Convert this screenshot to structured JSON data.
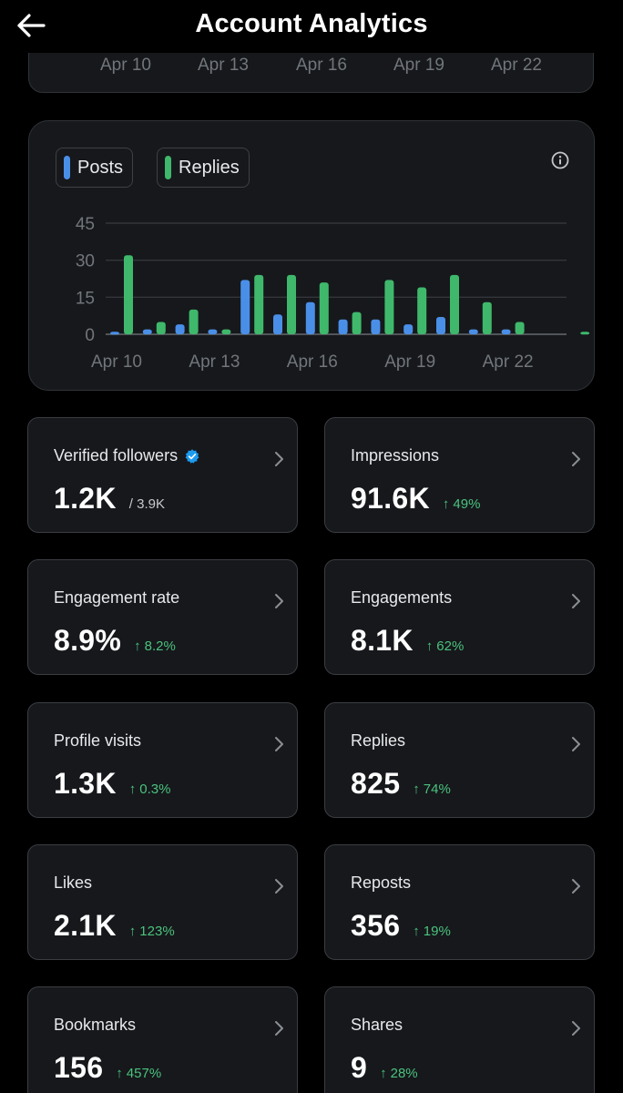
{
  "header": {
    "title": "Account Analytics"
  },
  "previous_chart": {
    "x_labels": [
      "Apr 10",
      "Apr 13",
      "Apr 16",
      "Apr 19",
      "Apr 22"
    ]
  },
  "chart_legend": {
    "posts_label": "Posts",
    "replies_label": "Replies"
  },
  "colors": {
    "posts": "#4a8fe7",
    "replies": "#3fb86b",
    "change_positive": "#4bc27d",
    "verified": "#1d9bf0"
  },
  "chart_data": {
    "type": "bar",
    "categories": [
      "Apr 10",
      "Apr 11",
      "Apr 12",
      "Apr 13",
      "Apr 14",
      "Apr 15",
      "Apr 16",
      "Apr 17",
      "Apr 18",
      "Apr 19",
      "Apr 20",
      "Apr 21",
      "Apr 22",
      "Apr 23",
      "Apr 24"
    ],
    "series": [
      {
        "name": "Posts",
        "values": [
          1,
          2,
          4,
          2,
          22,
          8,
          13,
          6,
          6,
          4,
          7,
          2,
          2,
          0,
          0
        ]
      },
      {
        "name": "Replies",
        "values": [
          32,
          5,
          10,
          2,
          24,
          24,
          21,
          9,
          22,
          19,
          24,
          13,
          5,
          0,
          1
        ]
      }
    ],
    "y_ticks": [
      0,
      15,
      30,
      45
    ],
    "ylim": [
      0,
      45
    ],
    "x_tick_labels": [
      "Apr 10",
      "Apr 13",
      "Apr 16",
      "Apr 19",
      "Apr 22"
    ],
    "grid": true,
    "legend": "top-left"
  },
  "stats": [
    {
      "label": "Verified followers",
      "value": "1.2K",
      "sub": "/ 3.9K",
      "verified_icon": "verified-badge-icon"
    },
    {
      "label": "Impressions",
      "value": "91.6K",
      "change": "49%"
    },
    {
      "label": "Engagement rate",
      "value": "8.9%",
      "change": "8.2%"
    },
    {
      "label": "Engagements",
      "value": "8.1K",
      "change": "62%"
    },
    {
      "label": "Profile visits",
      "value": "1.3K",
      "change": "0.3%"
    },
    {
      "label": "Replies",
      "value": "825",
      "change": "74%"
    },
    {
      "label": "Likes",
      "value": "2.1K",
      "change": "123%"
    },
    {
      "label": "Reposts",
      "value": "356",
      "change": "19%"
    },
    {
      "label": "Bookmarks",
      "value": "156",
      "change": "457%"
    },
    {
      "label": "Shares",
      "value": "9",
      "change": "28%"
    }
  ],
  "icons": {
    "back": "arrow-left-icon",
    "info": "info-icon",
    "chevron": "chevron-right-icon",
    "change_arrow": "arrow-up-icon"
  }
}
